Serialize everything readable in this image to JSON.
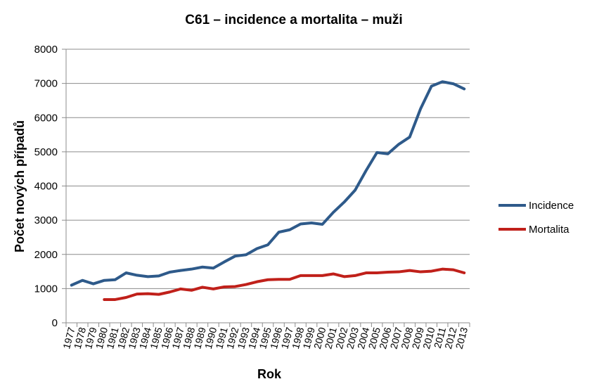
{
  "chart_data": {
    "type": "line",
    "title": "C61 – incidence a mortalita – muži",
    "xlabel": "Rok",
    "ylabel": "Počet nových případů",
    "ylim": [
      0,
      8000
    ],
    "yticks": [
      0,
      1000,
      2000,
      3000,
      4000,
      5000,
      6000,
      7000,
      8000
    ],
    "grid": true,
    "legend": "right",
    "x": [
      "1977",
      "1978",
      "1979",
      "1980",
      "1981",
      "1982",
      "1983",
      "1984",
      "1985",
      "1986",
      "1987",
      "1988",
      "1989",
      "1990",
      "1991",
      "1992",
      "1993",
      "1994",
      "1995",
      "1996",
      "1997",
      "1998",
      "1999",
      "2000",
      "2001",
      "2002",
      "2003",
      "2004",
      "2005",
      "2006",
      "2007",
      "2008",
      "2009",
      "2010",
      "2011",
      "2012",
      "2013"
    ],
    "series": [
      {
        "name": "Incidence",
        "color": "#2e5a8a",
        "values": [
          1100,
          1240,
          1140,
          1240,
          1260,
          1460,
          1390,
          1350,
          1370,
          1480,
          1530,
          1570,
          1630,
          1600,
          1780,
          1950,
          1990,
          2170,
          2280,
          2650,
          2720,
          2890,
          2920,
          2880,
          3230,
          3530,
          3880,
          4450,
          4980,
          4940,
          5220,
          5430,
          6260,
          6920,
          7050,
          6990,
          6840
        ]
      },
      {
        "name": "Mortalita",
        "color": "#c0201a",
        "values": [
          null,
          null,
          null,
          680,
          680,
          740,
          840,
          850,
          830,
          900,
          990,
          950,
          1040,
          990,
          1050,
          1060,
          1120,
          1200,
          1260,
          1270,
          1270,
          1380,
          1380,
          1380,
          1430,
          1350,
          1380,
          1460,
          1460,
          1480,
          1490,
          1530,
          1490,
          1510,
          1570,
          1550,
          1460
        ]
      }
    ]
  }
}
